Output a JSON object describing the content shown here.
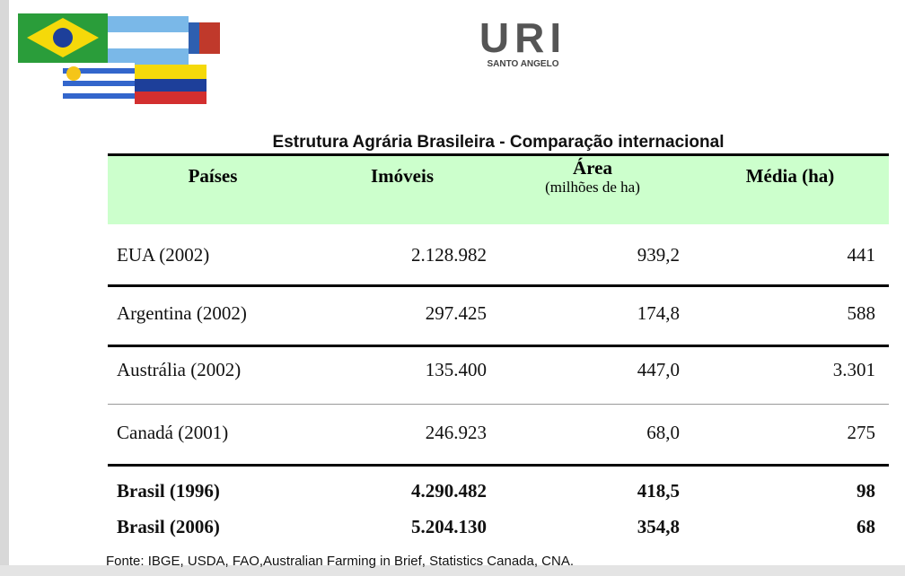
{
  "logo": {
    "name": "URI",
    "subtitle": "SANTO ANGELO"
  },
  "title": "Estrutura Agrária Brasileira  - Comparação internacional",
  "table": {
    "headers": [
      "Países",
      "Imóveis",
      "Área",
      "Média (ha)"
    ],
    "header_note": "(milhões de ha)",
    "rows": [
      [
        "EUA (2002)",
        "2.128.982",
        "939,2",
        "441"
      ],
      [
        "Argentina (2002)",
        "297.425",
        "174,8",
        "588"
      ],
      [
        "Austrália (2002)",
        "135.400",
        "447,0",
        "3.301"
      ],
      [
        "Canadá (2001)",
        "246.923",
        "68,0",
        "275"
      ]
    ],
    "summary_rows": [
      [
        "Brasil (1996)",
        "4.290.482",
        "418,5",
        "98"
      ],
      [
        "Brasil (2006)",
        "5.204.130",
        "354,8",
        "68"
      ]
    ]
  },
  "source": "Fonte: IBGE, USDA, FAO,Australian Farming in Brief, Statistics  Canada, CNA."
}
